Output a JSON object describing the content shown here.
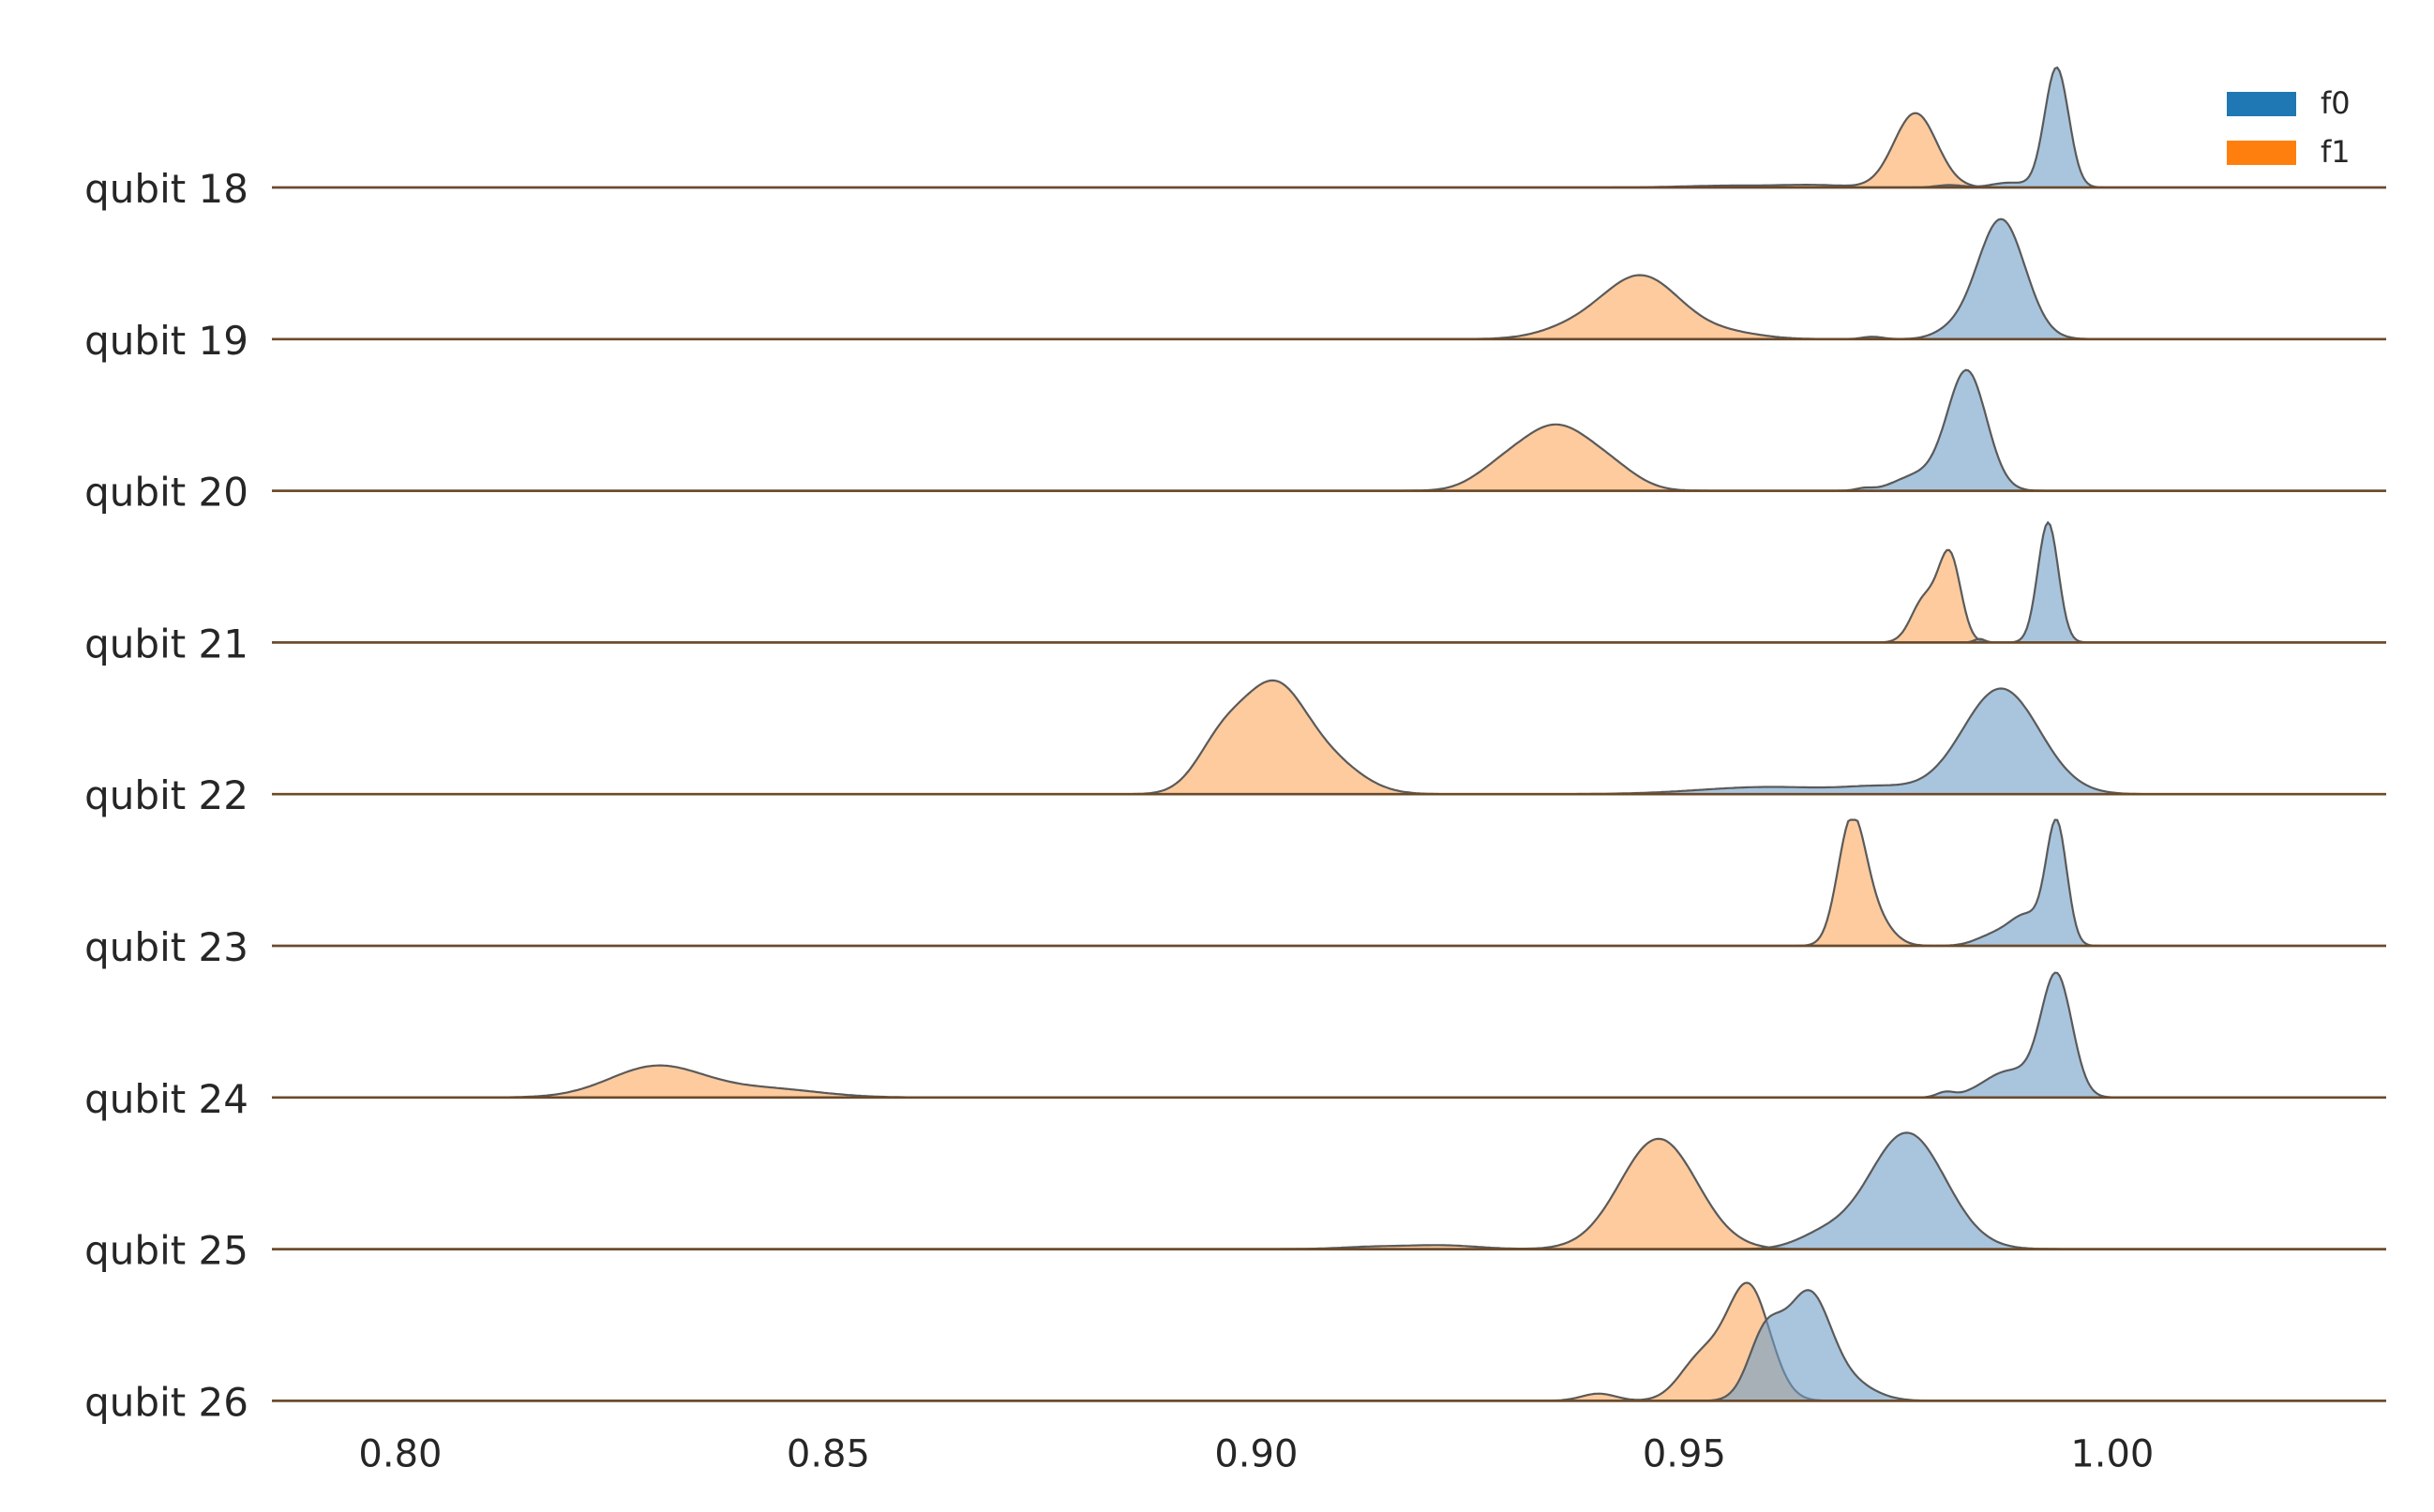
{
  "chart_data": {
    "type": "area",
    "subtype": "ridgeline-kde",
    "title": "",
    "xlabel": "",
    "ylabel": "",
    "xlim": [
      0.785,
      1.032
    ],
    "xticks": [
      0.8,
      0.85,
      0.9,
      0.95,
      1.0
    ],
    "xtick_labels": [
      "0.80",
      "0.85",
      "0.90",
      "0.95",
      "1.00"
    ],
    "grid": false,
    "legend": {
      "placement": "top-right",
      "entries": [
        {
          "label": "f0",
          "color": "#1f77b4"
        },
        {
          "label": "f1",
          "color": "#ff7f0e"
        }
      ]
    },
    "colors": {
      "f0_fill": "#a6c5de",
      "f1_fill": "#fdc899",
      "outline": "#5a5a5a",
      "baseline": "#6b4a2a"
    },
    "rows": [
      {
        "label": "qubit 18",
        "f0": [
          {
            "mu": 0.9935,
            "sd": 0.0014,
            "h": 1.0
          },
          {
            "mu": 0.988,
            "sd": 0.002,
            "h": 0.04
          },
          {
            "mu": 0.981,
            "sd": 0.0015,
            "h": 0.02
          }
        ],
        "f1": [
          {
            "mu": 0.977,
            "sd": 0.0025,
            "h": 0.62
          },
          {
            "mu": 0.965,
            "sd": 0.004,
            "h": 0.02
          },
          {
            "mu": 0.955,
            "sd": 0.005,
            "h": 0.015
          }
        ]
      },
      {
        "label": "qubit 19",
        "f0": [
          {
            "mu": 0.987,
            "sd": 0.0028,
            "h": 1.0
          },
          {
            "mu": 0.981,
            "sd": 0.002,
            "h": 0.05
          },
          {
            "mu": 0.972,
            "sd": 0.0012,
            "h": 0.02
          }
        ],
        "f1": [
          {
            "mu": 0.945,
            "sd": 0.0045,
            "h": 0.52
          },
          {
            "mu": 0.937,
            "sd": 0.004,
            "h": 0.08
          },
          {
            "mu": 0.955,
            "sd": 0.004,
            "h": 0.05
          }
        ]
      },
      {
        "label": "qubit 20",
        "f0": [
          {
            "mu": 0.983,
            "sd": 0.0023,
            "h": 1.0
          },
          {
            "mu": 0.977,
            "sd": 0.0025,
            "h": 0.12
          },
          {
            "mu": 0.971,
            "sd": 0.001,
            "h": 0.02
          }
        ],
        "f1": [
          {
            "mu": 0.935,
            "sd": 0.0045,
            "h": 0.54
          },
          {
            "mu": 0.928,
            "sd": 0.003,
            "h": 0.1
          },
          {
            "mu": 0.942,
            "sd": 0.003,
            "h": 0.1
          }
        ]
      },
      {
        "label": "qubit 21",
        "f0": [
          {
            "mu": 0.9925,
            "sd": 0.0012,
            "h": 1.0
          },
          {
            "mu": 0.9845,
            "sd": 0.0006,
            "h": 0.03
          }
        ],
        "f1": [
          {
            "mu": 0.981,
            "sd": 0.0013,
            "h": 0.72
          },
          {
            "mu": 0.978,
            "sd": 0.0015,
            "h": 0.35
          }
        ]
      },
      {
        "label": "qubit 22",
        "f0": [
          {
            "mu": 0.987,
            "sd": 0.0045,
            "h": 0.88
          },
          {
            "mu": 0.96,
            "sd": 0.008,
            "h": 0.06
          },
          {
            "mu": 0.973,
            "sd": 0.004,
            "h": 0.05
          }
        ],
        "f1": [
          {
            "mu": 0.902,
            "sd": 0.0035,
            "h": 0.8
          },
          {
            "mu": 0.896,
            "sd": 0.003,
            "h": 0.42
          },
          {
            "mu": 0.908,
            "sd": 0.004,
            "h": 0.28
          }
        ]
      },
      {
        "label": "qubit 23",
        "f0": [
          {
            "mu": 0.9935,
            "sd": 0.0012,
            "h": 1.0
          },
          {
            "mu": 0.99,
            "sd": 0.002,
            "h": 0.25
          },
          {
            "mu": 0.986,
            "sd": 0.002,
            "h": 0.08
          }
        ],
        "f1": [
          {
            "mu": 0.9695,
            "sd": 0.0016,
            "h": 0.97
          },
          {
            "mu": 0.972,
            "sd": 0.002,
            "h": 0.25
          }
        ]
      },
      {
        "label": "qubit 24",
        "f0": [
          {
            "mu": 0.9935,
            "sd": 0.0018,
            "h": 1.0
          },
          {
            "mu": 0.988,
            "sd": 0.003,
            "h": 0.22
          },
          {
            "mu": 0.9805,
            "sd": 0.001,
            "h": 0.04
          }
        ],
        "f1": [
          {
            "mu": 0.83,
            "sd": 0.0055,
            "h": 0.26
          },
          {
            "mu": 0.843,
            "sd": 0.006,
            "h": 0.07
          }
        ]
      },
      {
        "label": "qubit 25",
        "f0": [
          {
            "mu": 0.976,
            "sd": 0.0045,
            "h": 0.97
          },
          {
            "mu": 0.966,
            "sd": 0.003,
            "h": 0.1
          }
        ],
        "f1": [
          {
            "mu": 0.947,
            "sd": 0.0045,
            "h": 0.92
          },
          {
            "mu": 0.922,
            "sd": 0.004,
            "h": 0.03
          },
          {
            "mu": 0.914,
            "sd": 0.004,
            "h": 0.02
          }
        ]
      },
      {
        "label": "qubit 26",
        "f0": [
          {
            "mu": 0.9645,
            "sd": 0.0025,
            "h": 0.85
          },
          {
            "mu": 0.9595,
            "sd": 0.002,
            "h": 0.55
          },
          {
            "mu": 0.969,
            "sd": 0.003,
            "h": 0.15
          }
        ],
        "f1": [
          {
            "mu": 0.9575,
            "sd": 0.0025,
            "h": 0.95
          },
          {
            "mu": 0.952,
            "sd": 0.0025,
            "h": 0.35
          },
          {
            "mu": 0.94,
            "sd": 0.002,
            "h": 0.06
          }
        ]
      }
    ]
  }
}
